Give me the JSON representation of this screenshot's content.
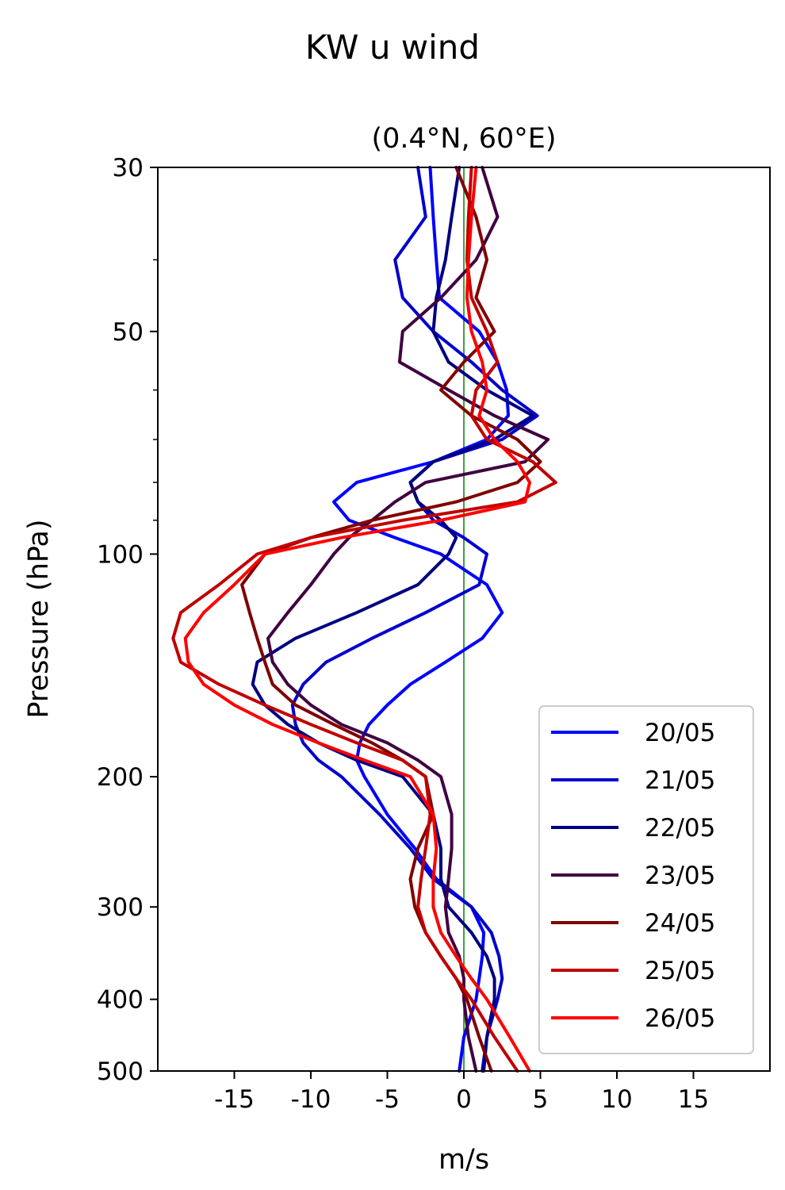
{
  "chart_data": {
    "type": "line",
    "suptitle": "KW u wind",
    "title": "(0.4°N, 60°E)",
    "xlabel": "m/s",
    "ylabel": "Pressure (hPa)",
    "xlim": [
      -20,
      20
    ],
    "ylim": [
      500,
      30
    ],
    "yscale": "log",
    "grid": false,
    "legend_position": "bottom-right",
    "reference_line": {
      "x": 0,
      "color": "#008000"
    },
    "x_ticks": [
      -15,
      -10,
      -5,
      0,
      5,
      10,
      15
    ],
    "x_tick_labels": [
      "-15",
      "-10",
      "-5",
      "0",
      "5",
      "10",
      "15"
    ],
    "y_ticks": [
      30,
      50,
      100,
      200,
      300,
      400,
      500
    ],
    "y_tick_labels": [
      "30",
      "50",
      "100",
      "200",
      "300",
      "400",
      "500"
    ],
    "y_minor_ticks": [
      40,
      60,
      70,
      80,
      90
    ],
    "pressure_levels": [
      30,
      35,
      40,
      45,
      50,
      55,
      60,
      65,
      70,
      75,
      80,
      85,
      90,
      95,
      100,
      110,
      120,
      130,
      140,
      150,
      160,
      170,
      180,
      190,
      200,
      225,
      250,
      275,
      300,
      325,
      350,
      375,
      400,
      450,
      500
    ],
    "series": [
      {
        "name": "20/05",
        "color": "#0000ff",
        "values": [
          -2.2,
          -2.0,
          -1.8,
          -1.6,
          1.0,
          2.2,
          2.8,
          2.9,
          1.5,
          -2.0,
          -7.0,
          -8.5,
          -7.5,
          -4.5,
          -1.5,
          1.5,
          2.5,
          1.2,
          -1.2,
          -3.5,
          -5.0,
          -6.2,
          -6.8,
          -7.0,
          -6.5,
          -5.0,
          -3.2,
          -1.8,
          0.5,
          1.3,
          1.2,
          1.0,
          0.8,
          0.0,
          -0.3
        ]
      },
      {
        "name": "21/05",
        "color": "#0000cc",
        "values": [
          -3.0,
          -2.5,
          -4.5,
          -4.0,
          -2.0,
          0.5,
          2.5,
          4.8,
          2.5,
          -2.0,
          -3.5,
          -3.0,
          -2.0,
          0.0,
          1.5,
          1.0,
          -2.5,
          -6.0,
          -9.0,
          -10.5,
          -11.2,
          -11.0,
          -10.5,
          -9.5,
          -8.0,
          -5.5,
          -3.5,
          -2.0,
          0.5,
          1.8,
          2.3,
          2.5,
          2.2,
          1.5,
          1.2
        ]
      },
      {
        "name": "22/05",
        "color": "#000080",
        "values": [
          -0.3,
          -0.8,
          -1.2,
          -1.8,
          -2.0,
          -1.0,
          1.5,
          4.5,
          2.0,
          -2.0,
          -3.5,
          -3.0,
          -1.5,
          -0.5,
          -1.0,
          -3.0,
          -7.0,
          -11.0,
          -13.5,
          -13.8,
          -13.0,
          -11.5,
          -9.5,
          -7.0,
          -4.0,
          -2.0,
          -1.5,
          -1.5,
          -1.0,
          0.5,
          1.5,
          2.0,
          2.0,
          1.5,
          1.3
        ]
      },
      {
        "name": "23/05",
        "color": "#400040",
        "values": [
          1.2,
          2.2,
          0.8,
          -1.5,
          -4.0,
          -4.2,
          -1.0,
          2.0,
          5.5,
          4.0,
          -2.5,
          -4.5,
          -6.0,
          -7.5,
          -8.5,
          -10.0,
          -11.5,
          -12.8,
          -12.5,
          -11.5,
          -10.0,
          -8.0,
          -5.0,
          -3.0,
          -1.5,
          -0.8,
          -0.8,
          -1.0,
          -1.2,
          -1.0,
          -0.3,
          0.0,
          0.0,
          0.3,
          0.8
        ]
      },
      {
        "name": "24/05",
        "color": "#800000",
        "values": [
          -0.5,
          0.8,
          1.5,
          0.8,
          2.0,
          0.0,
          -1.5,
          0.5,
          3.5,
          5.0,
          3.5,
          -0.5,
          -6.0,
          -10.0,
          -13.0,
          -14.5,
          -14.0,
          -13.5,
          -13.0,
          -12.5,
          -11.0,
          -8.5,
          -6.0,
          -4.0,
          -2.5,
          -2.0,
          -3.0,
          -3.5,
          -3.2,
          -2.5,
          -1.5,
          -0.5,
          0.2,
          1.0,
          1.8
        ]
      },
      {
        "name": "25/05",
        "color": "#c00000",
        "values": [
          0.5,
          0.3,
          0.2,
          0.5,
          1.5,
          2.2,
          0.8,
          0.5,
          1.5,
          4.5,
          6.0,
          3.5,
          -4.0,
          -10.0,
          -13.5,
          -16.0,
          -18.5,
          -19.0,
          -18.5,
          -16.0,
          -13.0,
          -10.0,
          -7.0,
          -4.0,
          -2.5,
          -2.2,
          -2.5,
          -2.8,
          -3.0,
          -2.5,
          -1.5,
          -0.5,
          0.5,
          2.0,
          3.5
        ]
      },
      {
        "name": "26/05",
        "color": "#ff0000",
        "values": [
          0.8,
          0.5,
          0.3,
          0.2,
          0.5,
          1.2,
          1.5,
          1.0,
          2.0,
          3.5,
          4.3,
          4.0,
          -1.5,
          -8.0,
          -13.0,
          -15.0,
          -17.0,
          -18.2,
          -18.0,
          -17.0,
          -15.0,
          -12.5,
          -9.5,
          -6.5,
          -3.5,
          -2.0,
          -1.8,
          -2.0,
          -2.0,
          -1.5,
          -0.5,
          0.5,
          1.5,
          3.0,
          4.3
        ]
      }
    ]
  }
}
